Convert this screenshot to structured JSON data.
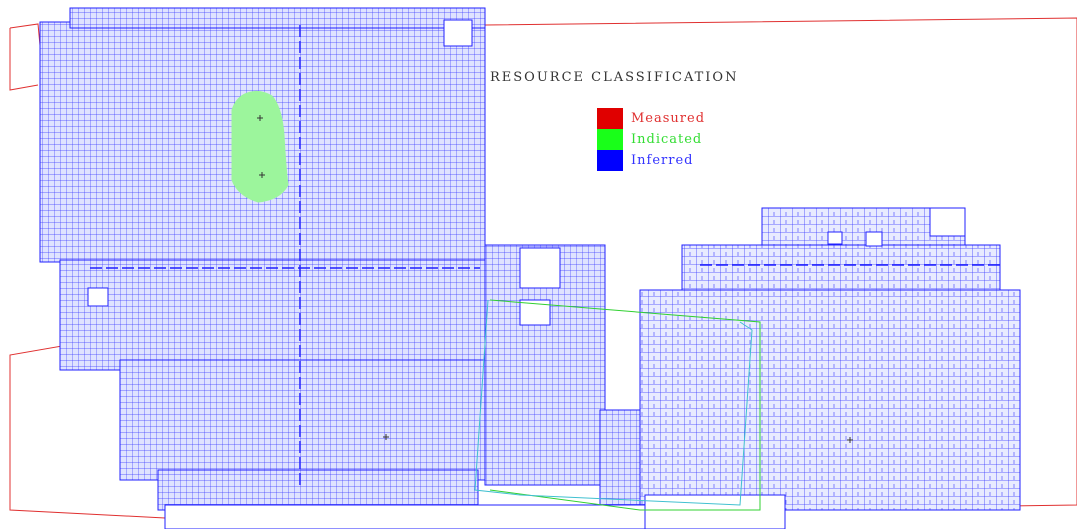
{
  "title": "RESOURCE CLASSIFICATION",
  "legend": [
    {
      "label": "Measured",
      "swatch_color": "#e00000",
      "text_color": "#e03030"
    },
    {
      "label": "Indicated",
      "swatch_color": "#19ff19",
      "text_color": "#33dd33"
    },
    {
      "label": "Inferred",
      "swatch_color": "#0000ff",
      "text_color": "#3333ff"
    }
  ],
  "colors": {
    "boundary": "#e03030",
    "block_grid": "#2020ff",
    "indicated_zone": "#9cf59c",
    "outline_green": "#30d030",
    "outline_cyan": "#40c0d0"
  }
}
